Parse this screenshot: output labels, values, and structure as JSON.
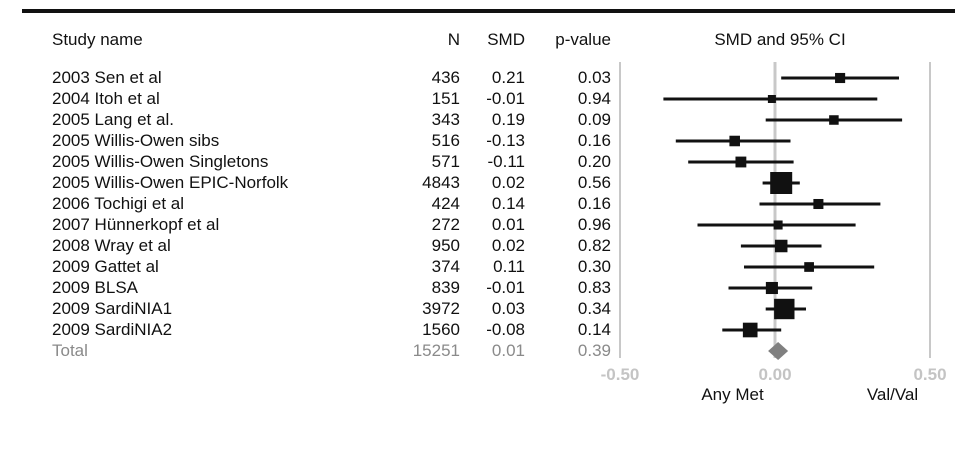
{
  "headers": {
    "study": "Study name",
    "n": "N",
    "smd": "SMD",
    "p": "p-value",
    "forest": "SMD and 95% CI"
  },
  "chart_data": {
    "type": "forest",
    "studies": [
      {
        "name": "2003 Sen et al",
        "n": "436",
        "smd": "0.21",
        "p": "0.03",
        "est": 0.21,
        "lo": 0.02,
        "hi": 0.4,
        "weight": 436
      },
      {
        "name": "2004 Itoh et al",
        "n": "151",
        "smd": "-0.01",
        "p": "0.94",
        "est": -0.01,
        "lo": -0.36,
        "hi": 0.33,
        "weight": 151
      },
      {
        "name": "2005 Lang et al.",
        "n": "343",
        "smd": "0.19",
        "p": "0.09",
        "est": 0.19,
        "lo": -0.03,
        "hi": 0.41,
        "weight": 343
      },
      {
        "name": "2005 Willis-Owen sibs",
        "n": "516",
        "smd": "-0.13",
        "p": "0.16",
        "est": -0.13,
        "lo": -0.32,
        "hi": 0.05,
        "weight": 516
      },
      {
        "name": "2005 Willis-Owen Singletons",
        "n": "571",
        "smd": "-0.11",
        "p": "0.20",
        "est": -0.11,
        "lo": -0.28,
        "hi": 0.06,
        "weight": 571
      },
      {
        "name": "2005 Willis-Owen EPIC-Norfolk",
        "n": "4843",
        "smd": "0.02",
        "p": "0.56",
        "est": 0.02,
        "lo": -0.04,
        "hi": 0.08,
        "weight": 4843
      },
      {
        "name": "2006 Tochigi et al",
        "n": "424",
        "smd": "0.14",
        "p": "0.16",
        "est": 0.14,
        "lo": -0.05,
        "hi": 0.34,
        "weight": 424
      },
      {
        "name": "2007 Hünnerkopf et al",
        "n": "272",
        "smd": "0.01",
        "p": "0.96",
        "est": 0.01,
        "lo": -0.25,
        "hi": 0.26,
        "weight": 272
      },
      {
        "name": "2008 Wray et al",
        "n": "950",
        "smd": "0.02",
        "p": "0.82",
        "est": 0.02,
        "lo": -0.11,
        "hi": 0.15,
        "weight": 950
      },
      {
        "name": "2009 Gattet al",
        "n": "374",
        "smd": "0.11",
        "p": "0.30",
        "est": 0.11,
        "lo": -0.1,
        "hi": 0.32,
        "weight": 374
      },
      {
        "name": "2009 BLSA",
        "n": "839",
        "smd": "-0.01",
        "p": "0.83",
        "est": -0.01,
        "lo": -0.15,
        "hi": 0.12,
        "weight": 839
      },
      {
        "name": "2009 SardiNIA1",
        "n": "3972",
        "smd": "0.03",
        "p": "0.34",
        "est": 0.03,
        "lo": -0.03,
        "hi": 0.1,
        "weight": 3972
      },
      {
        "name": "2009 SardiNIA2",
        "n": "1560",
        "smd": "-0.08",
        "p": "0.14",
        "est": -0.08,
        "lo": -0.17,
        "hi": 0.02,
        "weight": 1560
      }
    ],
    "total": {
      "name": "Total",
      "n": "15251",
      "smd": "0.01",
      "p": "0.39",
      "est": 0.01,
      "lo": -0.02,
      "hi": 0.04
    },
    "xlim": [
      -0.5,
      0.5
    ],
    "xticks": [
      "-0.50",
      "0.00",
      "0.50"
    ],
    "xlabel_left": "Any Met",
    "xlabel_right": "Val/Val",
    "colors": {
      "ink": "#111111",
      "total": "#8a8a8a",
      "diamond": "#808080",
      "grid": "#c8c8c8",
      "tick": "#c4c4c4"
    }
  }
}
